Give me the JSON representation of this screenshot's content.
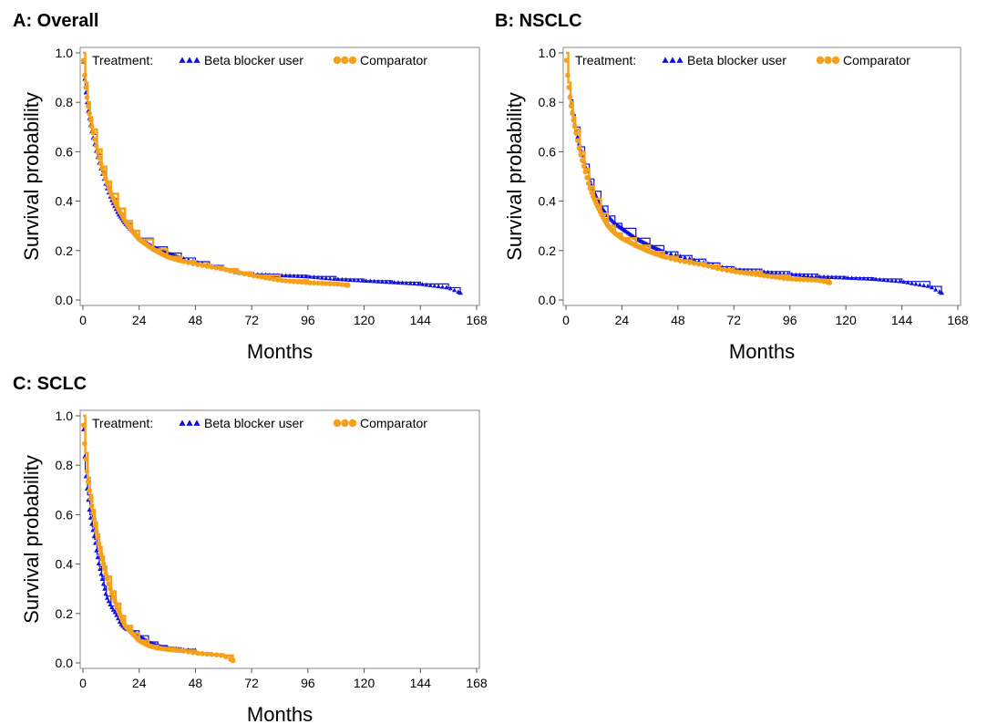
{
  "chart_data": [
    {
      "type": "line",
      "panel_title": "A: Overall",
      "legend_title": "Treatment:",
      "xlabel": "Months",
      "ylabel": "Survival probability",
      "xlim": [
        0,
        168
      ],
      "ylim": [
        0,
        1
      ],
      "xticks": [
        "0",
        "24",
        "48",
        "72",
        "96",
        "120",
        "144",
        "168"
      ],
      "yticks": [
        "0.0",
        "0.2",
        "0.4",
        "0.6",
        "0.8",
        "1.0"
      ],
      "legend_placement": "top",
      "series": [
        {
          "name": "Beta blocker user",
          "color": "#1010e0",
          "marker": "triangle",
          "x": [
            0,
            1,
            2,
            3,
            4,
            6,
            8,
            10,
            12,
            15,
            18,
            21,
            24,
            30,
            36,
            42,
            48,
            54,
            60,
            66,
            72,
            84,
            96,
            108,
            120,
            132,
            144,
            156,
            161
          ],
          "y": [
            1.0,
            0.86,
            0.78,
            0.72,
            0.67,
            0.59,
            0.52,
            0.46,
            0.41,
            0.35,
            0.31,
            0.28,
            0.25,
            0.215,
            0.19,
            0.17,
            0.155,
            0.14,
            0.125,
            0.11,
            0.105,
            0.1,
            0.095,
            0.085,
            0.078,
            0.072,
            0.065,
            0.05,
            0.03
          ]
        },
        {
          "name": "Comparator",
          "color": "#f5a01a",
          "marker": "circle",
          "x": [
            0,
            1,
            2,
            3,
            4,
            6,
            8,
            10,
            12,
            15,
            18,
            21,
            24,
            30,
            36,
            42,
            48,
            54,
            60,
            66,
            72,
            84,
            96,
            108,
            113
          ],
          "y": [
            1.0,
            0.88,
            0.8,
            0.74,
            0.69,
            0.61,
            0.54,
            0.48,
            0.43,
            0.37,
            0.32,
            0.28,
            0.245,
            0.205,
            0.175,
            0.158,
            0.145,
            0.135,
            0.125,
            0.112,
            0.1,
            0.08,
            0.07,
            0.065,
            0.06
          ]
        }
      ]
    },
    {
      "type": "line",
      "panel_title": "B: NSCLC",
      "legend_title": "Treatment:",
      "xlabel": "Months",
      "ylabel": "Survival probability",
      "xlim": [
        0,
        168
      ],
      "ylim": [
        0,
        1
      ],
      "xticks": [
        "0",
        "24",
        "48",
        "72",
        "96",
        "120",
        "144",
        "168"
      ],
      "yticks": [
        "0.0",
        "0.2",
        "0.4",
        "0.6",
        "0.8",
        "1.0"
      ],
      "legend_placement": "top",
      "series": [
        {
          "name": "Beta blocker user",
          "color": "#1010e0",
          "marker": "triangle",
          "x": [
            0,
            1,
            2,
            3,
            4,
            6,
            8,
            10,
            12,
            15,
            18,
            21,
            24,
            30,
            36,
            42,
            48,
            54,
            60,
            66,
            72,
            84,
            96,
            108,
            120,
            132,
            144,
            156,
            161
          ],
          "y": [
            1.0,
            0.88,
            0.81,
            0.75,
            0.7,
            0.62,
            0.55,
            0.49,
            0.44,
            0.38,
            0.34,
            0.31,
            0.29,
            0.25,
            0.22,
            0.195,
            0.18,
            0.165,
            0.15,
            0.135,
            0.125,
            0.115,
            0.105,
            0.095,
            0.09,
            0.085,
            0.075,
            0.055,
            0.03
          ]
        },
        {
          "name": "Comparator",
          "color": "#f5a01a",
          "marker": "circle",
          "x": [
            0,
            1,
            2,
            3,
            4,
            6,
            8,
            10,
            12,
            15,
            18,
            21,
            24,
            30,
            36,
            42,
            48,
            54,
            60,
            66,
            72,
            84,
            96,
            108,
            113
          ],
          "y": [
            1.0,
            0.88,
            0.8,
            0.74,
            0.69,
            0.6,
            0.53,
            0.46,
            0.41,
            0.35,
            0.3,
            0.27,
            0.25,
            0.22,
            0.195,
            0.175,
            0.16,
            0.15,
            0.14,
            0.125,
            0.115,
            0.1,
            0.085,
            0.08,
            0.07
          ]
        }
      ]
    },
    {
      "type": "line",
      "panel_title": "C: SCLC",
      "legend_title": "Treatment:",
      "xlabel": "Months",
      "ylabel": "Survival probability",
      "xlim": [
        0,
        168
      ],
      "ylim": [
        0,
        1
      ],
      "xticks": [
        "0",
        "24",
        "48",
        "72",
        "96",
        "120",
        "144",
        "168"
      ],
      "yticks": [
        "0.0",
        "0.2",
        "0.4",
        "0.6",
        "0.8",
        "1.0"
      ],
      "legend_placement": "top",
      "series": [
        {
          "name": "Beta blocker user",
          "color": "#1010e0",
          "marker": "triangle",
          "x": [
            0,
            1,
            2,
            3,
            4,
            5,
            6,
            7,
            8,
            9,
            10,
            12,
            14,
            16,
            18,
            21,
            24,
            28,
            32,
            36,
            42,
            48
          ],
          "y": [
            1.0,
            0.78,
            0.68,
            0.6,
            0.55,
            0.5,
            0.44,
            0.39,
            0.35,
            0.31,
            0.27,
            0.23,
            0.2,
            0.16,
            0.14,
            0.13,
            0.11,
            0.085,
            0.07,
            0.06,
            0.055,
            0.05
          ]
        },
        {
          "name": "Comparator",
          "color": "#f5a01a",
          "marker": "circle",
          "x": [
            0,
            1,
            2,
            3,
            4,
            5,
            6,
            7,
            8,
            9,
            10,
            12,
            14,
            16,
            18,
            21,
            24,
            28,
            32,
            36,
            42,
            48,
            54,
            60,
            64
          ],
          "y": [
            1.0,
            0.85,
            0.75,
            0.68,
            0.62,
            0.57,
            0.52,
            0.47,
            0.43,
            0.39,
            0.35,
            0.29,
            0.24,
            0.19,
            0.15,
            0.12,
            0.09,
            0.07,
            0.06,
            0.055,
            0.05,
            0.04,
            0.035,
            0.03,
            0.01
          ]
        }
      ]
    }
  ]
}
